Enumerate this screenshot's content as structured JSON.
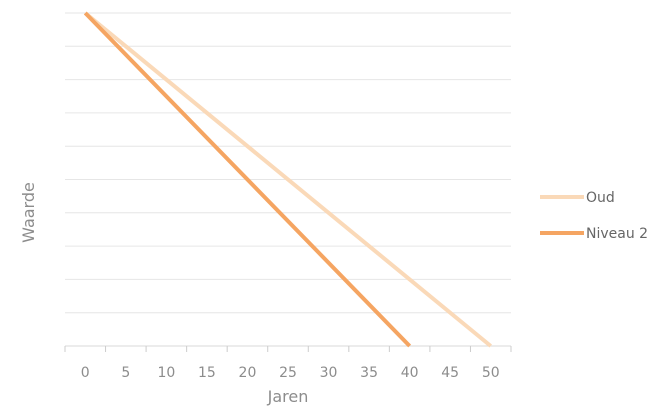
{
  "chart_data": {
    "type": "line",
    "xlabel": "Jaren",
    "ylabel": "Waarde",
    "x_ticks": [
      0,
      5,
      10,
      15,
      20,
      25,
      30,
      35,
      40,
      45,
      50
    ],
    "xlim": [
      -2.5,
      52.5
    ],
    "ylim": [
      0,
      100
    ],
    "gridlines": 10,
    "grid": true,
    "legend_position": "right",
    "series": [
      {
        "name": "Oud",
        "color": "#fad9b8",
        "points": [
          [
            0,
            100
          ],
          [
            50,
            0
          ]
        ]
      },
      {
        "name": "Niveau 2",
        "color": "#f5a562",
        "points": [
          [
            0,
            100
          ],
          [
            40,
            0
          ]
        ]
      }
    ]
  }
}
